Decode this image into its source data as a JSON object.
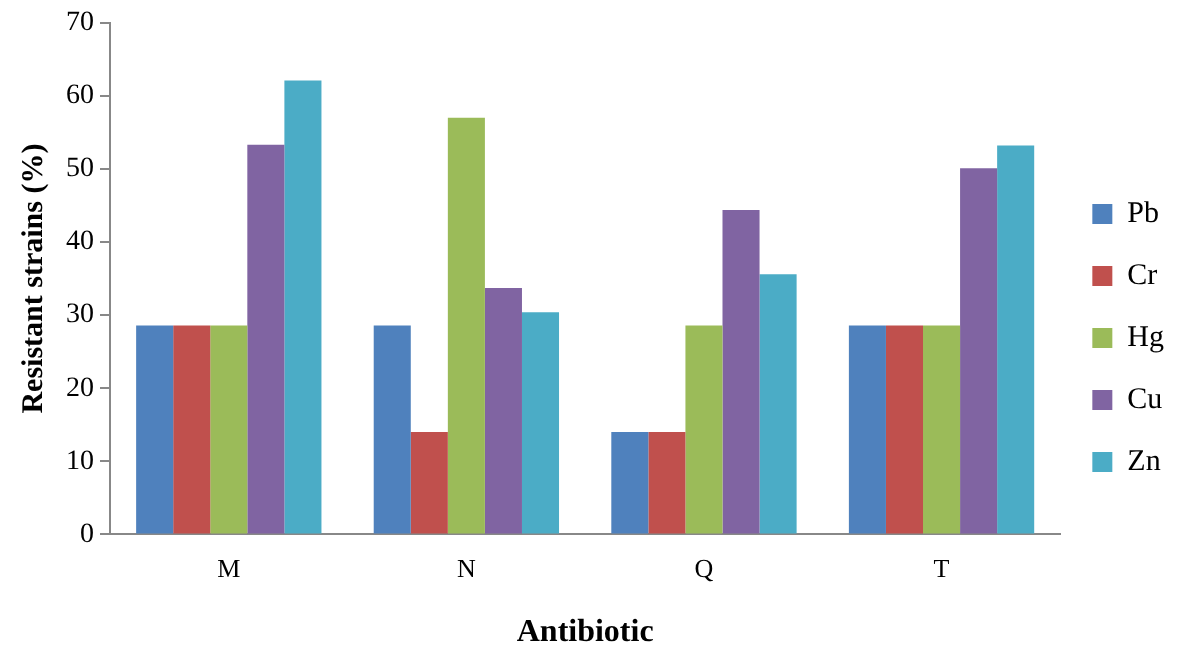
{
  "chart_data": {
    "type": "bar",
    "xlabel": "Antibiotic",
    "ylabel": "Resistant strains (%)",
    "categories": [
      "M",
      "N",
      "Q",
      "T"
    ],
    "series": [
      {
        "name": "Pb",
        "color": "#4f81bd",
        "values": [
          28.6,
          28.6,
          14,
          28.6
        ]
      },
      {
        "name": "Cr",
        "color": "#c0504d",
        "values": [
          28.6,
          14,
          14,
          28.6
        ]
      },
      {
        "name": "Hg",
        "color": "#9bbb59",
        "values": [
          28.6,
          57,
          28.6,
          28.6
        ]
      },
      {
        "name": "Cu",
        "color": "#8064a2",
        "values": [
          53.3,
          33.7,
          44.4,
          50.1
        ]
      },
      {
        "name": "Zn",
        "color": "#4bacc6",
        "values": [
          62.1,
          30.4,
          35.6,
          53.2
        ]
      }
    ],
    "ylim": [
      0,
      70
    ],
    "yticks": [
      0,
      10,
      20,
      30,
      40,
      50,
      60,
      70
    ],
    "grid": false,
    "legend": "right"
  }
}
